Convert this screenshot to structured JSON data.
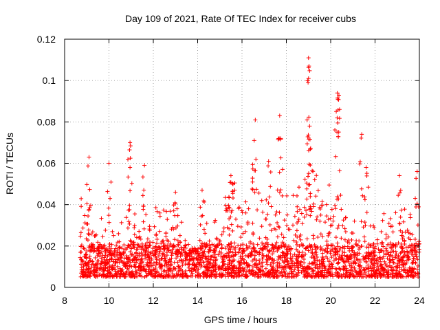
{
  "chart_data": {
    "type": "scatter",
    "title": "Day 109 of 2021, Rate Of TEC Index for receiver cubs",
    "xlabel": "GPS time / hours",
    "ylabel": "ROTI / TECUs",
    "xlim": [
      8,
      24
    ],
    "ylim": [
      0,
      0.12
    ],
    "xticks": [
      8,
      10,
      12,
      14,
      16,
      18,
      20,
      22,
      24
    ],
    "xtick_labels": [
      "8",
      "10",
      "12",
      "14",
      "16",
      "18",
      "20",
      "22",
      "24"
    ],
    "yticks": [
      0,
      0.02,
      0.04,
      0.06,
      0.08,
      0.1,
      0.12
    ],
    "ytick_labels": [
      "0",
      "0.02",
      "0.04",
      "0.06",
      "0.08",
      "0.1",
      "0.12"
    ],
    "grid": true,
    "marker": "+",
    "color": "#ff0000",
    "data_x_range": [
      8.7,
      24
    ],
    "series": [
      {
        "name": "ROTI",
        "density_note": "dense band of points mostly between 0.005 and 0.03 TECUs across 8.7-24 h",
        "peaks": [
          {
            "x": 9.1,
            "y": 0.063
          },
          {
            "x": 10.0,
            "y": 0.06
          },
          {
            "x": 10.95,
            "y": 0.07
          },
          {
            "x": 10.95,
            "y": 0.058
          },
          {
            "x": 11.6,
            "y": 0.059
          },
          {
            "x": 13.0,
            "y": 0.046
          },
          {
            "x": 14.2,
            "y": 0.047
          },
          {
            "x": 15.5,
            "y": 0.054
          },
          {
            "x": 16.6,
            "y": 0.081
          },
          {
            "x": 16.55,
            "y": 0.071
          },
          {
            "x": 17.2,
            "y": 0.061
          },
          {
            "x": 17.7,
            "y": 0.083
          },
          {
            "x": 17.75,
            "y": 0.072
          },
          {
            "x": 19.0,
            "y": 0.111
          },
          {
            "x": 19.02,
            "y": 0.107
          },
          {
            "x": 19.0,
            "y": 0.101
          },
          {
            "x": 19.05,
            "y": 0.078
          },
          {
            "x": 20.3,
            "y": 0.094
          },
          {
            "x": 20.32,
            "y": 0.091
          },
          {
            "x": 20.25,
            "y": 0.085
          },
          {
            "x": 21.4,
            "y": 0.074
          },
          {
            "x": 21.6,
            "y": 0.058
          },
          {
            "x": 23.1,
            "y": 0.054
          },
          {
            "x": 23.9,
            "y": 0.056
          }
        ]
      }
    ]
  }
}
